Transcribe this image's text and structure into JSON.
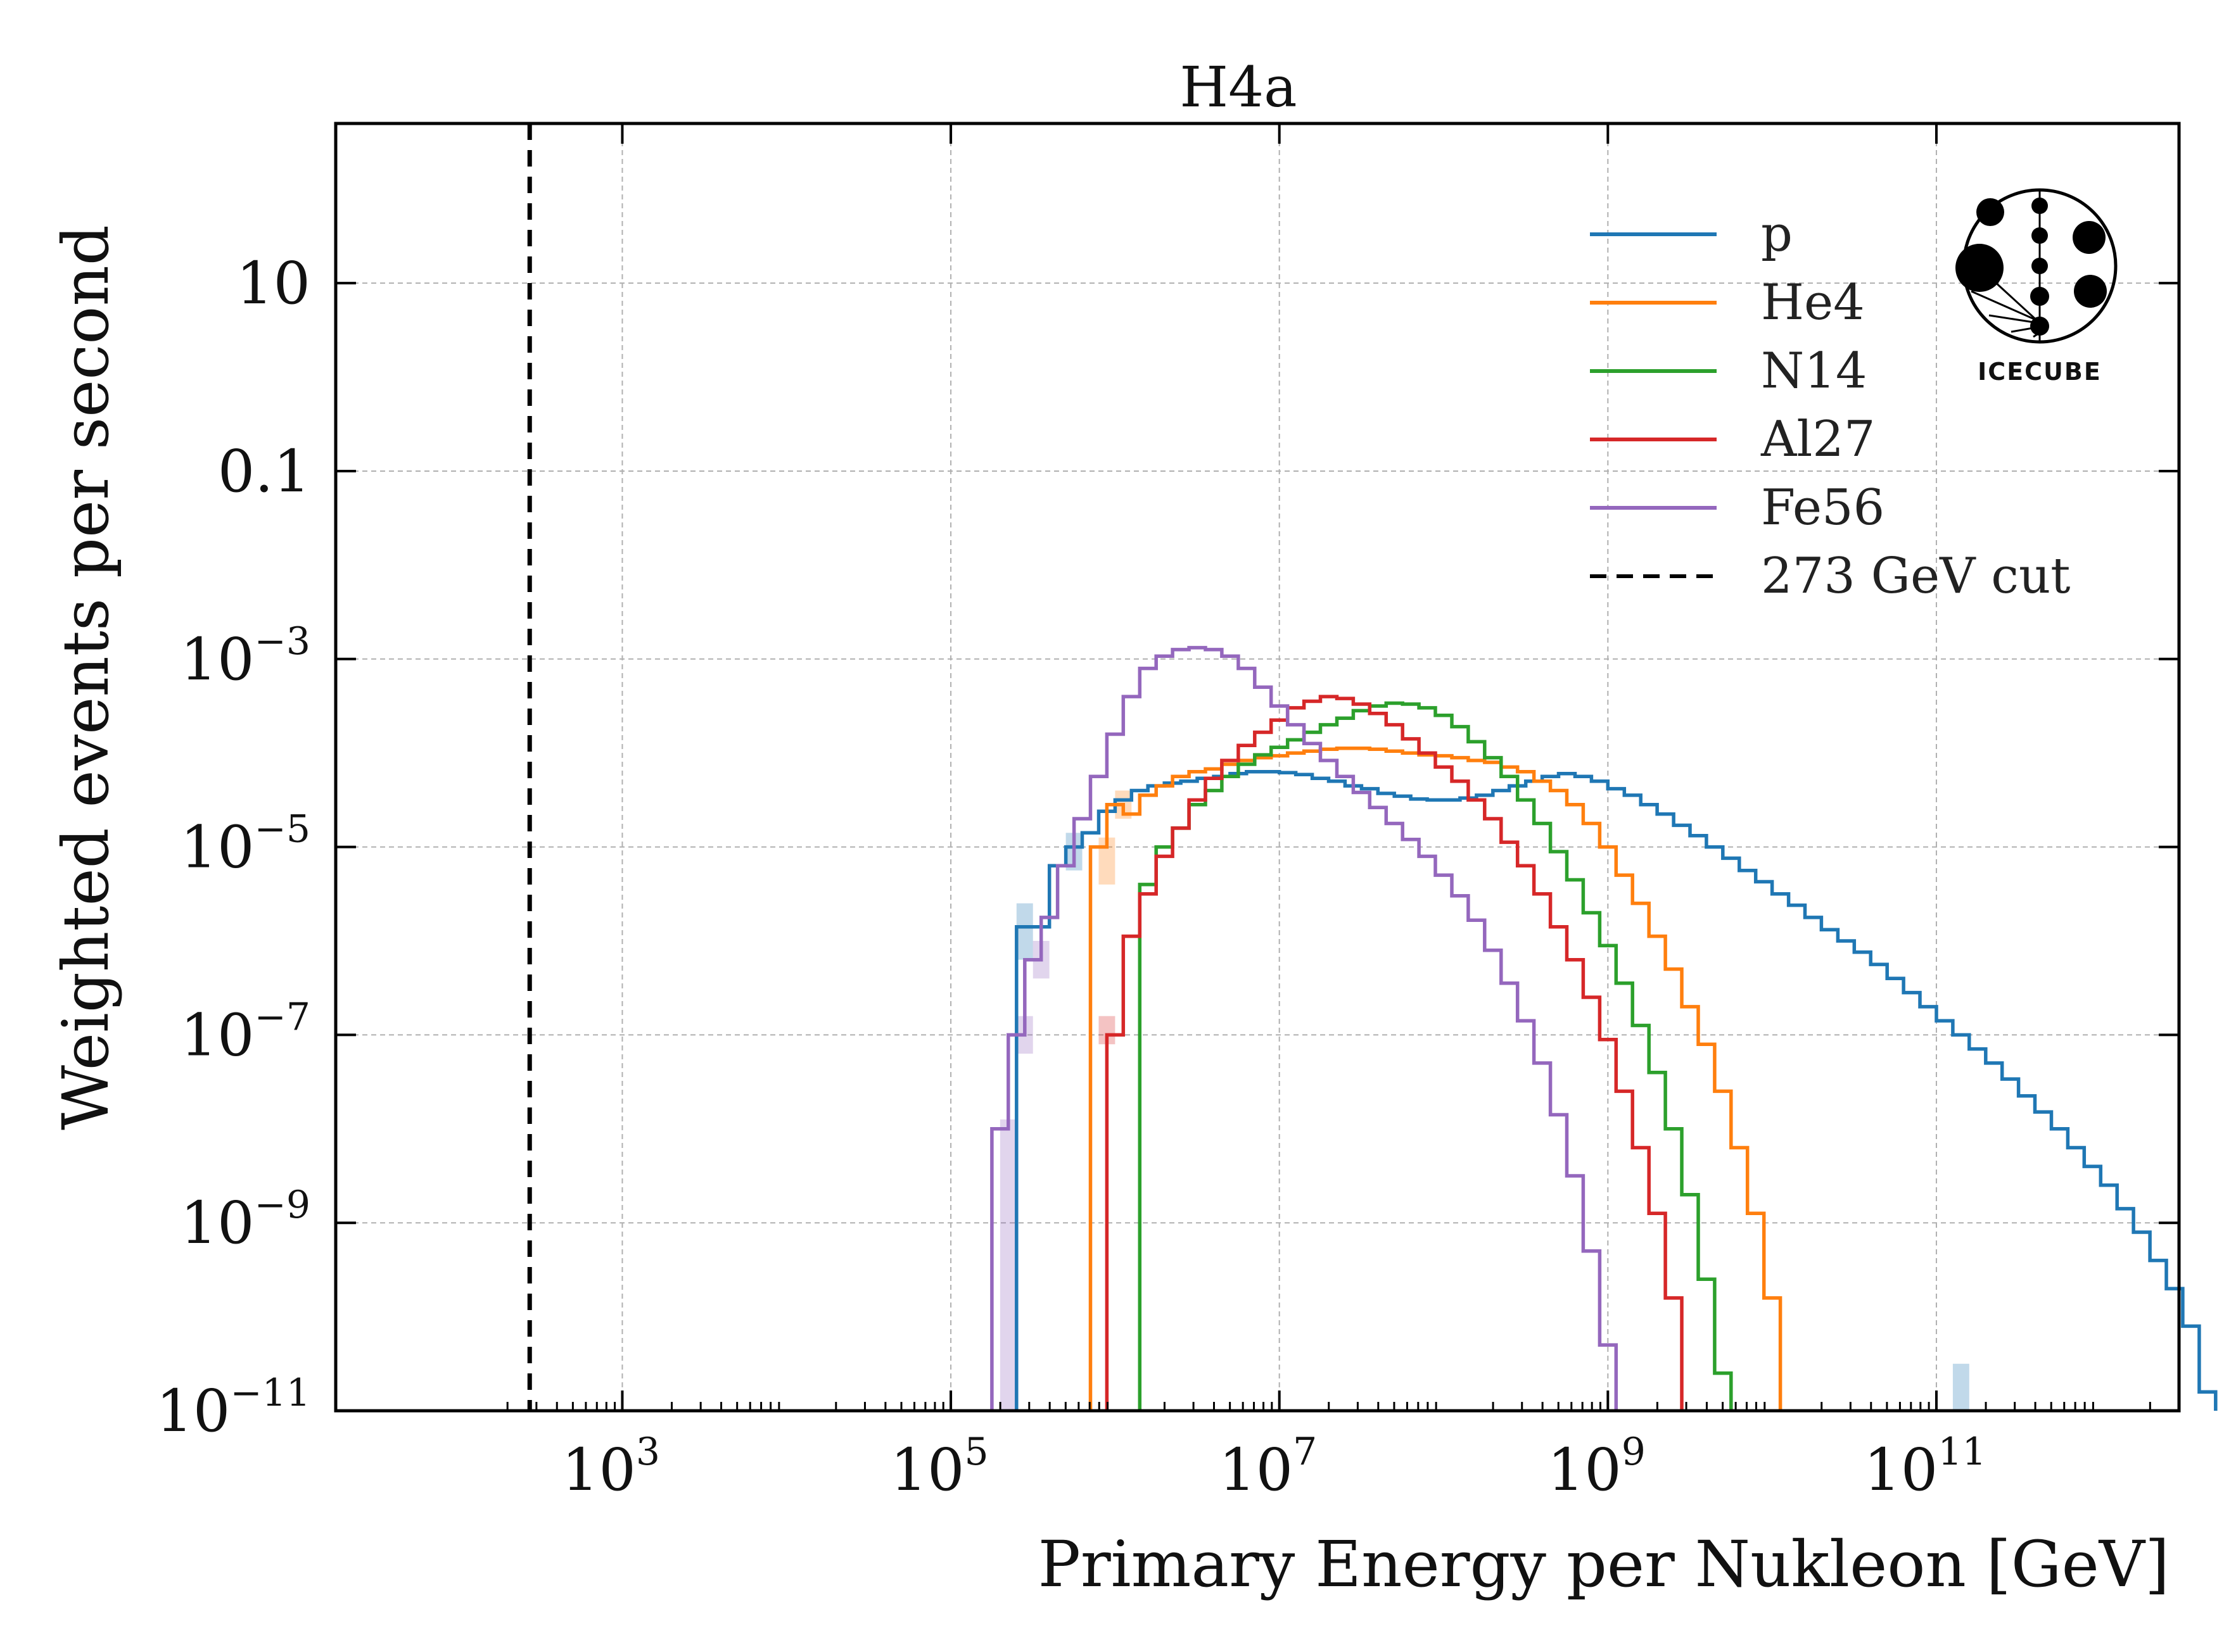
{
  "chart_data": {
    "type": "line",
    "title": "H4a",
    "xlabel": "Primary Energy per Nukleon [GeV]",
    "ylabel": "Weighted events per second",
    "x_scale": "log",
    "y_scale": "log",
    "xlim": [
      18,
      3000000000000.0
    ],
    "ylim": [
      1e-11,
      500
    ],
    "grid": true,
    "legend_position": "top-right",
    "x_ticks": [
      {
        "value": 1000.0,
        "base": "10",
        "exp": "3"
      },
      {
        "value": 100000.0,
        "base": "10",
        "exp": "5"
      },
      {
        "value": 10000000.0,
        "base": "10",
        "exp": "7"
      },
      {
        "value": 1000000000.0,
        "base": "10",
        "exp": "9"
      },
      {
        "value": 100000000000.0,
        "base": "10",
        "exp": "11"
      }
    ],
    "y_ticks": [
      {
        "value": 10,
        "base": "10",
        "exp": ""
      },
      {
        "value": 0.1,
        "base": "0.1",
        "exp": ""
      },
      {
        "value": 0.001,
        "base": "10",
        "exp": "−3"
      },
      {
        "value": 1e-05,
        "base": "10",
        "exp": "−5"
      },
      {
        "value": 1e-07,
        "base": "10",
        "exp": "−7"
      },
      {
        "value": 1e-09,
        "base": "10",
        "exp": "−9"
      },
      {
        "value": 1e-11,
        "base": "10",
        "exp": "−11"
      }
    ],
    "bin_log10_width": 0.1,
    "cut": {
      "name": "273 GeV cut",
      "value": 273,
      "color": "#000000"
    },
    "series": [
      {
        "name": "p",
        "color": "#1f77b4",
        "start_log10": 5.4,
        "log10_values": [
          -5.85,
          -5.85,
          -5.2,
          -5.0,
          -4.85,
          -4.62,
          -4.5,
          -4.4,
          -4.35,
          -4.32,
          -4.3,
          -4.27,
          -4.25,
          -4.22,
          -4.2,
          -4.2,
          -4.21,
          -4.23,
          -4.27,
          -4.3,
          -4.35,
          -4.38,
          -4.43,
          -4.46,
          -4.49,
          -4.5,
          -4.5,
          -4.48,
          -4.45,
          -4.4,
          -4.35,
          -4.3,
          -4.25,
          -4.22,
          -4.25,
          -4.3,
          -4.38,
          -4.45,
          -4.55,
          -4.65,
          -4.77,
          -4.88,
          -5.0,
          -5.12,
          -5.25,
          -5.37,
          -5.5,
          -5.62,
          -5.75,
          -5.88,
          -6.0,
          -6.12,
          -6.25,
          -6.4,
          -6.55,
          -6.7,
          -6.85,
          -7.0,
          -7.15,
          -7.3,
          -7.47,
          -7.65,
          -7.82,
          -8.0,
          -8.2,
          -8.4,
          -8.6,
          -8.85,
          -9.1,
          -9.4,
          -9.7,
          -10.1,
          -10.8
        ],
        "band": [
          {
            "log10_x": 5.45,
            "lo": -6.2,
            "hi": -5.6
          },
          {
            "log10_x": 5.75,
            "lo": -5.25,
            "hi": -4.85
          },
          {
            "log10_x": 11.15,
            "lo": -11.0,
            "hi": -10.5
          }
        ]
      },
      {
        "name": "He4",
        "color": "#ff7f0e",
        "start_log10": 5.85,
        "log10_values": [
          -5.0,
          -4.55,
          -4.65,
          -4.45,
          -4.35,
          -4.25,
          -4.2,
          -4.17,
          -4.12,
          -4.08,
          -4.05,
          -4.03,
          -4.0,
          -3.98,
          -3.96,
          -3.95,
          -3.95,
          -3.96,
          -3.98,
          -4.0,
          -4.02,
          -4.03,
          -4.05,
          -4.08,
          -4.1,
          -4.15,
          -4.2,
          -4.3,
          -4.4,
          -4.55,
          -4.75,
          -5.0,
          -5.3,
          -5.6,
          -5.95,
          -6.3,
          -6.7,
          -7.1,
          -7.6,
          -8.2,
          -8.9,
          -9.8
        ],
        "band": [
          {
            "log10_x": 5.95,
            "lo": -5.4,
            "hi": -4.9
          },
          {
            "log10_x": 6.05,
            "lo": -4.7,
            "hi": -4.4
          }
        ]
      },
      {
        "name": "N14",
        "color": "#2ca02c",
        "start_log10": 6.15,
        "log10_values": [
          -5.4,
          -5.0,
          -4.8,
          -4.55,
          -4.4,
          -4.25,
          -4.12,
          -4.02,
          -3.94,
          -3.86,
          -3.78,
          -3.7,
          -3.63,
          -3.55,
          -3.5,
          -3.47,
          -3.48,
          -3.52,
          -3.6,
          -3.72,
          -3.88,
          -4.05,
          -4.25,
          -4.5,
          -4.75,
          -5.05,
          -5.35,
          -5.7,
          -6.05,
          -6.45,
          -6.9,
          -7.4,
          -8.0,
          -8.7,
          -9.6,
          -10.6
        ]
      },
      {
        "name": "Al27",
        "color": "#d62728",
        "start_log10": 5.95,
        "log10_values": [
          -7.0,
          -5.95,
          -5.5,
          -5.1,
          -4.8,
          -4.5,
          -4.27,
          -4.08,
          -3.92,
          -3.78,
          -3.65,
          -3.52,
          -3.45,
          -3.4,
          -3.42,
          -3.48,
          -3.58,
          -3.7,
          -3.85,
          -4.0,
          -4.15,
          -4.3,
          -4.5,
          -4.7,
          -4.95,
          -5.2,
          -5.5,
          -5.85,
          -6.2,
          -6.6,
          -7.05,
          -7.6,
          -8.2,
          -8.9,
          -9.8
        ],
        "band": [
          {
            "log10_x": 5.95,
            "lo": -7.1,
            "hi": -6.8
          }
        ]
      },
      {
        "name": "Fe56",
        "color": "#9467bd",
        "start_log10": 5.25,
        "log10_values": [
          -8.0,
          -7.0,
          -6.2,
          -5.75,
          -5.2,
          -4.7,
          -4.25,
          -3.8,
          -3.4,
          -3.1,
          -2.97,
          -2.9,
          -2.88,
          -2.9,
          -2.97,
          -3.1,
          -3.3,
          -3.5,
          -3.7,
          -3.9,
          -4.08,
          -4.25,
          -4.42,
          -4.58,
          -4.75,
          -4.92,
          -5.1,
          -5.3,
          -5.52,
          -5.78,
          -6.1,
          -6.45,
          -6.85,
          -7.3,
          -7.85,
          -8.5,
          -9.3,
          -10.3
        ],
        "band": [
          {
            "log10_x": 5.35,
            "lo": -11.0,
            "hi": -7.9
          },
          {
            "log10_x": 5.45,
            "lo": -7.2,
            "hi": -6.8
          },
          {
            "log10_x": 5.55,
            "lo": -6.4,
            "hi": -6.0
          }
        ]
      }
    ]
  },
  "logo": {
    "text": "ICECUBE"
  }
}
